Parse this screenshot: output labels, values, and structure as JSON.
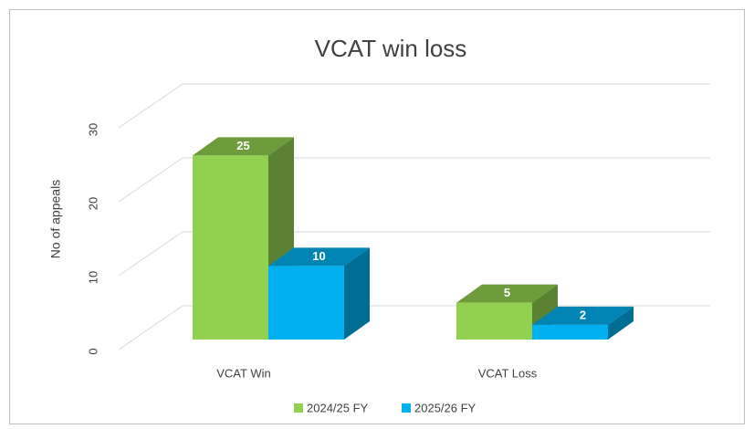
{
  "chart_data": {
    "type": "bar3d",
    "title": "VCAT win loss",
    "ylabel": "No of appeals",
    "categories": [
      "VCAT Win",
      "VCAT Loss"
    ],
    "series": [
      {
        "name": "2024/25 FY",
        "color": "#92d050",
        "values": [
          25,
          5
        ]
      },
      {
        "name": "2025/26 FY",
        "color": "#00b0f0",
        "values": [
          10,
          2
        ]
      }
    ],
    "ylim": [
      0,
      30
    ],
    "yticks": [
      0,
      10,
      20,
      30
    ],
    "grid": true,
    "legend": "bottom"
  }
}
